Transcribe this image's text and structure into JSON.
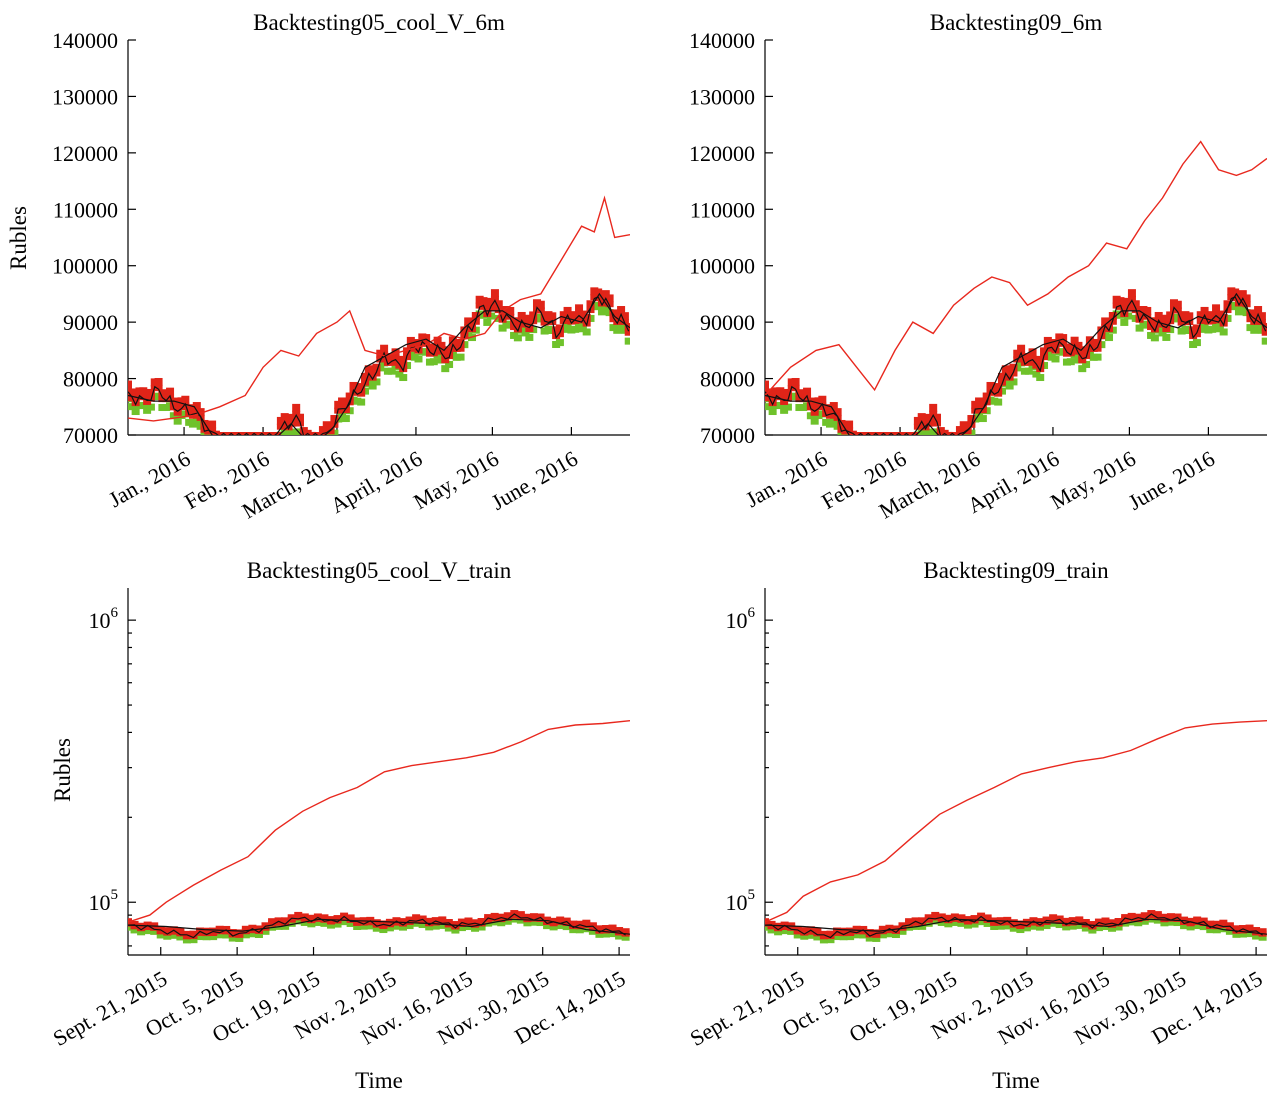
{
  "colors": {
    "strategy_line": "#e8281e",
    "price_line": "#111111",
    "upper_marker": "#e02418",
    "lower_marker": "#6fc22b",
    "axis": "#000000"
  },
  "chart_data": [
    {
      "type": "line",
      "title": "Backtesting05_cool_V_6m",
      "ylabel": "Rubles",
      "xlabel": "",
      "yscale": "linear",
      "ylim": [
        70000,
        140000
      ],
      "yticks": [
        "70000",
        "80000",
        "90000",
        "100000",
        "110000",
        "120000",
        "130000",
        "140000"
      ],
      "xlim": [
        "2015-12-10",
        "2016-06-24"
      ],
      "xticks": [
        {
          "date": "2016-01-01",
          "label": "Jan., 2016"
        },
        {
          "date": "2016-02-01",
          "label": "Feb., 2016"
        },
        {
          "date": "2016-03-01",
          "label": "March, 2016"
        },
        {
          "date": "2016-04-01",
          "label": "April, 2016"
        },
        {
          "date": "2016-05-01",
          "label": "May, 2016"
        },
        {
          "date": "2016-06-01",
          "label": "June, 2016"
        }
      ],
      "grid": false,
      "legend": "none",
      "series": [
        {
          "color": "#e8281e",
          "x": [
            "2015-12-10",
            "2015-12-20",
            "2016-01-05",
            "2016-01-15",
            "2016-01-25",
            "2016-02-01",
            "2016-02-08",
            "2016-02-15",
            "2016-02-22",
            "2016-03-01",
            "2016-03-06",
            "2016-03-12",
            "2016-03-20",
            "2016-03-28",
            "2016-04-05",
            "2016-04-12",
            "2016-04-20",
            "2016-04-28",
            "2016-05-05",
            "2016-05-12",
            "2016-05-20",
            "2016-05-28",
            "2016-06-05",
            "2016-06-10",
            "2016-06-14",
            "2016-06-18",
            "2016-06-24"
          ],
          "values": [
            73000,
            72500,
            73500,
            75000,
            77000,
            82000,
            85000,
            84000,
            88000,
            90000,
            92000,
            85000,
            84000,
            85000,
            86000,
            88000,
            87000,
            88000,
            92000,
            94000,
            95000,
            101000,
            107000,
            106000,
            112000,
            105000,
            105500
          ]
        },
        {
          "color": "#111111",
          "x": [
            "2015-12-10",
            "2015-12-20",
            "2015-12-28",
            "2016-01-05",
            "2016-01-12",
            "2016-01-20",
            "2016-01-28",
            "2016-02-05",
            "2016-02-12",
            "2016-02-20",
            "2016-02-28",
            "2016-03-05",
            "2016-03-12",
            "2016-03-20",
            "2016-03-28",
            "2016-04-05",
            "2016-04-12",
            "2016-04-20",
            "2016-04-28",
            "2016-05-05",
            "2016-05-12",
            "2016-05-20",
            "2016-05-28",
            "2016-06-05",
            "2016-06-12",
            "2016-06-18",
            "2016-06-24"
          ],
          "values": [
            77000,
            76000,
            76000,
            75000,
            70000,
            66000,
            64000,
            69000,
            72000,
            68000,
            71000,
            75000,
            82000,
            84000,
            86000,
            87000,
            85000,
            89000,
            92000,
            92000,
            90000,
            89000,
            91000,
            90000,
            95000,
            91000,
            89000
          ]
        }
      ],
      "band": {
        "x": [
          "2015-12-10",
          "2015-12-16",
          "2015-12-22",
          "2015-12-28",
          "2016-01-05",
          "2016-01-12",
          "2016-01-18",
          "2016-01-26",
          "2016-02-01",
          "2016-02-08",
          "2016-02-14",
          "2016-02-20",
          "2016-02-26",
          "2016-03-02",
          "2016-03-08",
          "2016-03-14",
          "2016-03-20",
          "2016-03-26",
          "2016-04-01",
          "2016-04-08",
          "2016-04-14",
          "2016-04-20",
          "2016-04-26",
          "2016-05-02",
          "2016-05-08",
          "2016-05-14",
          "2016-05-20",
          "2016-05-26",
          "2016-06-01",
          "2016-06-06",
          "2016-06-12",
          "2016-06-18",
          "2016-06-24"
        ],
        "values": [
          77000,
          76000,
          78000,
          75000,
          74000,
          70000,
          66000,
          69000,
          64000,
          71000,
          73000,
          68000,
          70000,
          74000,
          77000,
          80000,
          84000,
          82000,
          86000,
          85000,
          84000,
          87000,
          92000,
          93000,
          90000,
          89000,
          92000,
          88000,
          91000,
          90000,
          95000,
          91000,
          89000
        ]
      }
    },
    {
      "type": "line",
      "title": "Backtesting09_6m",
      "ylabel": "",
      "xlabel": "",
      "yscale": "linear",
      "ylim": [
        70000,
        140000
      ],
      "yticks": [
        "70000",
        "80000",
        "90000",
        "100000",
        "110000",
        "120000",
        "130000",
        "140000"
      ],
      "xlim": [
        "2015-12-10",
        "2016-06-24"
      ],
      "xticks": [
        {
          "date": "2016-01-01",
          "label": "Jan., 2016"
        },
        {
          "date": "2016-02-01",
          "label": "Feb., 2016"
        },
        {
          "date": "2016-03-01",
          "label": "March, 2016"
        },
        {
          "date": "2016-04-01",
          "label": "April, 2016"
        },
        {
          "date": "2016-05-01",
          "label": "May, 2016"
        },
        {
          "date": "2016-06-01",
          "label": "June, 2016"
        }
      ],
      "grid": false,
      "legend": "none",
      "series": [
        {
          "color": "#e8281e",
          "x": [
            "2015-12-10",
            "2015-12-20",
            "2015-12-30",
            "2016-01-08",
            "2016-01-15",
            "2016-01-22",
            "2016-01-30",
            "2016-02-06",
            "2016-02-14",
            "2016-02-22",
            "2016-03-01",
            "2016-03-08",
            "2016-03-15",
            "2016-03-22",
            "2016-03-30",
            "2016-04-07",
            "2016-04-15",
            "2016-04-22",
            "2016-04-30",
            "2016-05-07",
            "2016-05-14",
            "2016-05-22",
            "2016-05-29",
            "2016-06-05",
            "2016-06-12",
            "2016-06-18",
            "2016-06-24"
          ],
          "values": [
            77000,
            82000,
            85000,
            86000,
            82000,
            78000,
            85000,
            90000,
            88000,
            93000,
            96000,
            98000,
            97000,
            93000,
            95000,
            98000,
            100000,
            104000,
            103000,
            108000,
            112000,
            118000,
            122000,
            117000,
            116000,
            117000,
            119000
          ]
        },
        {
          "color": "#111111",
          "x": [
            "2015-12-10",
            "2015-12-20",
            "2015-12-28",
            "2016-01-05",
            "2016-01-12",
            "2016-01-20",
            "2016-01-28",
            "2016-02-05",
            "2016-02-12",
            "2016-02-20",
            "2016-02-28",
            "2016-03-05",
            "2016-03-12",
            "2016-03-20",
            "2016-03-28",
            "2016-04-05",
            "2016-04-12",
            "2016-04-20",
            "2016-04-28",
            "2016-05-05",
            "2016-05-12",
            "2016-05-20",
            "2016-05-28",
            "2016-06-05",
            "2016-06-12",
            "2016-06-18",
            "2016-06-24"
          ],
          "values": [
            77000,
            76000,
            76000,
            75000,
            70000,
            66000,
            64000,
            69000,
            72000,
            68000,
            71000,
            75000,
            82000,
            84000,
            86000,
            87000,
            85000,
            89000,
            92000,
            92000,
            90000,
            89000,
            91000,
            90000,
            95000,
            91000,
            89000
          ]
        }
      ],
      "band": {
        "x": [
          "2015-12-10",
          "2015-12-16",
          "2015-12-22",
          "2015-12-28",
          "2016-01-05",
          "2016-01-12",
          "2016-01-18",
          "2016-01-26",
          "2016-02-01",
          "2016-02-08",
          "2016-02-14",
          "2016-02-20",
          "2016-02-26",
          "2016-03-02",
          "2016-03-08",
          "2016-03-14",
          "2016-03-20",
          "2016-03-26",
          "2016-04-01",
          "2016-04-08",
          "2016-04-14",
          "2016-04-20",
          "2016-04-26",
          "2016-05-02",
          "2016-05-08",
          "2016-05-14",
          "2016-05-20",
          "2016-05-26",
          "2016-06-01",
          "2016-06-06",
          "2016-06-12",
          "2016-06-18",
          "2016-06-24"
        ],
        "values": [
          77000,
          76000,
          78000,
          75000,
          74000,
          70000,
          66000,
          69000,
          64000,
          71000,
          73000,
          68000,
          70000,
          74000,
          77000,
          80000,
          84000,
          82000,
          86000,
          85000,
          84000,
          87000,
          92000,
          93000,
          90000,
          89000,
          92000,
          88000,
          91000,
          90000,
          95000,
          91000,
          89000
        ]
      }
    },
    {
      "type": "line",
      "title": "Backtesting05_cool_V_train",
      "ylabel": "Rubles",
      "xlabel": "Time",
      "yscale": "log",
      "ylim": [
        65000,
        1300000
      ],
      "yticks": [
        {
          "value": 100000,
          "base": "10",
          "exp": "5"
        },
        {
          "value": 1000000,
          "base": "10",
          "exp": "6"
        }
      ],
      "xlim": [
        "2015-09-15",
        "2015-12-16"
      ],
      "xticks": [
        {
          "date": "2015-09-21",
          "label": "Sept. 21, 2015"
        },
        {
          "date": "2015-10-05",
          "label": "Oct. 5, 2015"
        },
        {
          "date": "2015-10-19",
          "label": "Oct. 19, 2015"
        },
        {
          "date": "2015-11-02",
          "label": "Nov. 2, 2015"
        },
        {
          "date": "2015-11-16",
          "label": "Nov. 16, 2015"
        },
        {
          "date": "2015-11-30",
          "label": "Nov. 30, 2015"
        },
        {
          "date": "2015-12-14",
          "label": "Dec. 14, 2015"
        }
      ],
      "grid": false,
      "legend": "none",
      "series": [
        {
          "color": "#e8281e",
          "x": [
            "2015-09-15",
            "2015-09-19",
            "2015-09-22",
            "2015-09-27",
            "2015-10-02",
            "2015-10-07",
            "2015-10-12",
            "2015-10-17",
            "2015-10-22",
            "2015-10-27",
            "2015-11-01",
            "2015-11-06",
            "2015-11-11",
            "2015-11-16",
            "2015-11-21",
            "2015-11-26",
            "2015-12-01",
            "2015-12-06",
            "2015-12-11",
            "2015-12-16"
          ],
          "values": [
            85000,
            90000,
            100000,
            115000,
            130000,
            145000,
            180000,
            210000,
            235000,
            255000,
            290000,
            305000,
            315000,
            325000,
            340000,
            370000,
            410000,
            425000,
            430000,
            440000
          ]
        },
        {
          "color": "#111111",
          "x": [
            "2015-09-15",
            "2015-09-22",
            "2015-09-29",
            "2015-10-06",
            "2015-10-13",
            "2015-10-20",
            "2015-10-27",
            "2015-11-03",
            "2015-11-10",
            "2015-11-17",
            "2015-11-24",
            "2015-12-01",
            "2015-12-08",
            "2015-12-16"
          ],
          "values": [
            83000,
            82000,
            80000,
            79000,
            82000,
            87000,
            86000,
            85000,
            84000,
            82000,
            87000,
            86000,
            80000,
            77000
          ]
        }
      ],
      "band": {
        "x": [
          "2015-09-15",
          "2015-09-19",
          "2015-09-23",
          "2015-09-27",
          "2015-10-01",
          "2015-10-05",
          "2015-10-09",
          "2015-10-13",
          "2015-10-17",
          "2015-10-21",
          "2015-10-25",
          "2015-10-29",
          "2015-11-02",
          "2015-11-06",
          "2015-11-10",
          "2015-11-14",
          "2015-11-18",
          "2015-11-22",
          "2015-11-26",
          "2015-11-30",
          "2015-12-04",
          "2015-12-08",
          "2015-12-12",
          "2015-12-16"
        ],
        "values": [
          83000,
          81000,
          78000,
          76000,
          79000,
          77000,
          80000,
          85000,
          88000,
          86000,
          87000,
          84000,
          83000,
          86000,
          85000,
          83000,
          84000,
          88000,
          89000,
          86000,
          84000,
          82000,
          79000,
          78000
        ]
      }
    },
    {
      "type": "line",
      "title": "Backtesting09_train",
      "ylabel": "",
      "xlabel": "Time",
      "yscale": "log",
      "ylim": [
        65000,
        1300000
      ],
      "yticks": [
        {
          "value": 100000,
          "base": "10",
          "exp": "5"
        },
        {
          "value": 1000000,
          "base": "10",
          "exp": "6"
        }
      ],
      "xlim": [
        "2015-09-15",
        "2015-12-16"
      ],
      "xticks": [
        {
          "date": "2015-09-21",
          "label": "Sept. 21, 2015"
        },
        {
          "date": "2015-10-05",
          "label": "Oct. 5, 2015"
        },
        {
          "date": "2015-10-19",
          "label": "Oct. 19, 2015"
        },
        {
          "date": "2015-11-02",
          "label": "Nov. 2, 2015"
        },
        {
          "date": "2015-11-16",
          "label": "Nov. 16, 2015"
        },
        {
          "date": "2015-11-30",
          "label": "Nov. 30, 2015"
        },
        {
          "date": "2015-12-14",
          "label": "Dec. 14, 2015"
        }
      ],
      "grid": false,
      "legend": "none",
      "series": [
        {
          "color": "#e8281e",
          "x": [
            "2015-09-15",
            "2015-09-19",
            "2015-09-22",
            "2015-09-27",
            "2015-10-02",
            "2015-10-07",
            "2015-10-12",
            "2015-10-17",
            "2015-10-22",
            "2015-10-27",
            "2015-11-01",
            "2015-11-06",
            "2015-11-11",
            "2015-11-16",
            "2015-11-21",
            "2015-11-26",
            "2015-12-01",
            "2015-12-06",
            "2015-12-11",
            "2015-12-16"
          ],
          "values": [
            85000,
            92000,
            105000,
            118000,
            125000,
            140000,
            170000,
            205000,
            230000,
            255000,
            285000,
            300000,
            315000,
            325000,
            345000,
            380000,
            415000,
            428000,
            435000,
            440000
          ]
        },
        {
          "color": "#111111",
          "x": [
            "2015-09-15",
            "2015-09-22",
            "2015-09-29",
            "2015-10-06",
            "2015-10-13",
            "2015-10-20",
            "2015-10-27",
            "2015-11-03",
            "2015-11-10",
            "2015-11-17",
            "2015-11-24",
            "2015-12-01",
            "2015-12-08",
            "2015-12-16"
          ],
          "values": [
            83000,
            82000,
            80000,
            79000,
            82000,
            87000,
            86000,
            85000,
            84000,
            82000,
            87000,
            86000,
            80000,
            77000
          ]
        }
      ],
      "band": {
        "x": [
          "2015-09-15",
          "2015-09-19",
          "2015-09-23",
          "2015-09-27",
          "2015-10-01",
          "2015-10-05",
          "2015-10-09",
          "2015-10-13",
          "2015-10-17",
          "2015-10-21",
          "2015-10-25",
          "2015-10-29",
          "2015-11-02",
          "2015-11-06",
          "2015-11-10",
          "2015-11-14",
          "2015-11-18",
          "2015-11-22",
          "2015-11-26",
          "2015-11-30",
          "2015-12-04",
          "2015-12-08",
          "2015-12-12",
          "2015-12-16"
        ],
        "values": [
          83000,
          81000,
          78000,
          76000,
          79000,
          77000,
          80000,
          85000,
          88000,
          86000,
          87000,
          84000,
          83000,
          86000,
          85000,
          83000,
          84000,
          88000,
          89000,
          86000,
          84000,
          82000,
          79000,
          78000
        ]
      }
    }
  ]
}
